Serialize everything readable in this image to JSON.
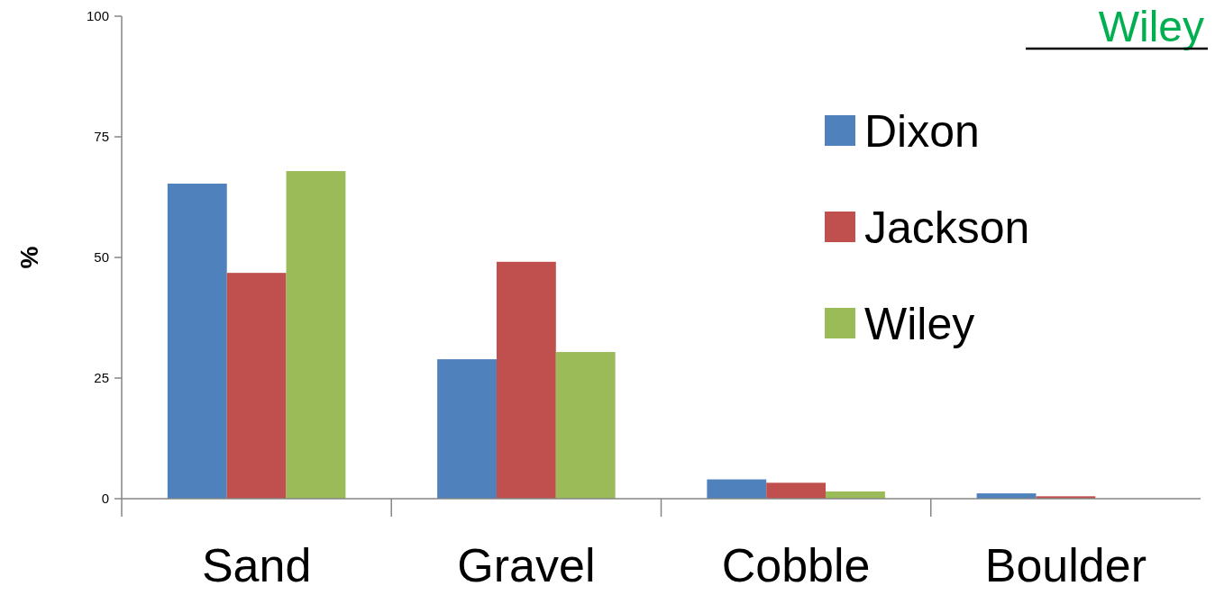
{
  "chart_data": {
    "type": "bar",
    "ylabel": "%",
    "categories": [
      "Sand",
      "Gravel",
      "Cobble",
      "Boulder"
    ],
    "series": [
      {
        "name": "Dixon",
        "color": "#4f81bd",
        "values": [
          65.3,
          28.9,
          4.0,
          1.1
        ]
      },
      {
        "name": "Jackson",
        "color": "#c0504d",
        "values": [
          46.8,
          49.1,
          3.3,
          0.5
        ]
      },
      {
        "name": "Wiley",
        "color": "#9bbb59",
        "values": [
          67.9,
          30.4,
          1.5,
          0
        ]
      }
    ],
    "ylim": [
      0,
      100
    ],
    "yticks": [
      0,
      25,
      50,
      75,
      100
    ],
    "grid": false,
    "legend": "top right",
    "annotations": [
      "Wiley"
    ]
  }
}
